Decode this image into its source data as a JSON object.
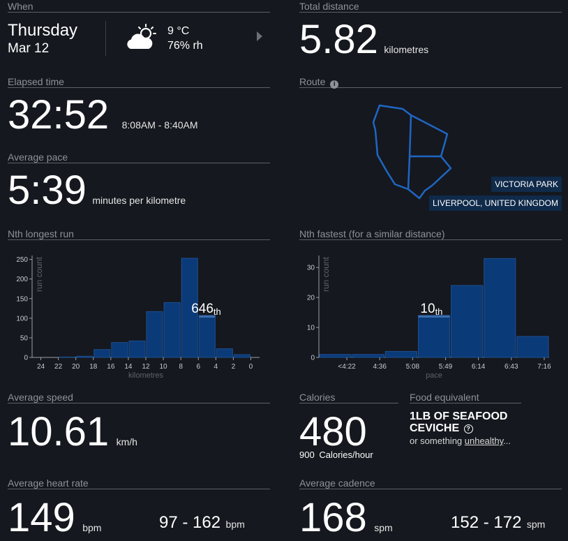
{
  "when": {
    "label": "When",
    "day": "Thursday",
    "date": "Mar 12",
    "temperature": "9 °C",
    "humidity": "76% rh",
    "next_icon": "chevron-right-icon",
    "weather_icon": "partly-cloudy-icon"
  },
  "distance": {
    "label": "Total distance",
    "value": "5.82",
    "unit": "kilometres"
  },
  "elapsed": {
    "label": "Elapsed time",
    "value": "32:52",
    "range": "8:08AM - 8:40AM"
  },
  "route": {
    "label": "Route",
    "info_icon": "info-icon",
    "place": "VICTORIA PARK",
    "city": "LIVERPOOL, UNITED KINGDOM"
  },
  "pace": {
    "label": "Average pace",
    "value": "5:39",
    "unit": "minutes per kilometre"
  },
  "longest": {
    "label": "Nth longest run",
    "rank": "646",
    "suffix": "th"
  },
  "fastest": {
    "label": "Nth fastest (for a similar distance)",
    "rank": "10",
    "suffix": "th"
  },
  "speed": {
    "label": "Average speed",
    "value": "10.61",
    "unit": "km/h"
  },
  "calories": {
    "label": "Calories",
    "value": "480",
    "rate_value": "900",
    "rate_unit": "Calories/hour"
  },
  "food": {
    "label": "Food equivalent",
    "line1": "1LB OF SEAFOOD",
    "line2": "CEVICHE",
    "help_icon": "question-icon",
    "prefix": "or something ",
    "link": "unhealthy",
    "suffix": "..."
  },
  "heart": {
    "label": "Average heart rate",
    "value": "149",
    "unit": "bpm",
    "range": "97 - 162",
    "range_unit": "bpm"
  },
  "cadence": {
    "label": "Average cadence",
    "value": "168",
    "unit": "spm",
    "range": "152 - 172",
    "range_unit": "spm"
  },
  "chart_data": [
    {
      "type": "bar",
      "title": "Nth longest run",
      "ylabel": "run count",
      "xlabel": "kilometres",
      "x_reversed": true,
      "ylim": [
        0,
        260
      ],
      "yticks": [
        0,
        50,
        100,
        150,
        200,
        250
      ],
      "xticks": [
        "24",
        "22",
        "20",
        "18",
        "16",
        "14",
        "12",
        "10",
        "8",
        "6",
        "4",
        "2",
        "0"
      ],
      "bars": [
        {
          "from": 22,
          "to": 20,
          "value": 1
        },
        {
          "from": 20,
          "to": 18,
          "value": 3
        },
        {
          "from": 18,
          "to": 16,
          "value": 20
        },
        {
          "from": 16,
          "to": 14,
          "value": 38
        },
        {
          "from": 14,
          "to": 12,
          "value": 42
        },
        {
          "from": 12,
          "to": 10,
          "value": 117
        },
        {
          "from": 10,
          "to": 8,
          "value": 140
        },
        {
          "from": 8,
          "to": 6,
          "value": 253
        },
        {
          "from": 6,
          "to": 4,
          "value": 107
        },
        {
          "from": 4,
          "to": 2,
          "value": 22
        },
        {
          "from": 2,
          "to": 0,
          "value": 7
        }
      ],
      "highlight_index": 8
    },
    {
      "type": "bar",
      "title": "Nth fastest (for a similar distance)",
      "ylabel": "run count",
      "xlabel": "pace",
      "ylim": [
        0,
        34
      ],
      "yticks": [
        0,
        10,
        20,
        30
      ],
      "xticks": [
        "<4:22",
        "4:36",
        "5:08",
        "5:49",
        "6:14",
        "6:43",
        "7:16"
      ],
      "bars": [
        {
          "value": 1
        },
        {
          "value": 1
        },
        {
          "value": 2
        },
        {
          "value": 14
        },
        {
          "value": 24
        },
        {
          "value": 33
        },
        {
          "value": 7
        }
      ],
      "highlight_index": 3
    }
  ],
  "colors": {
    "bar": "#0b3a78",
    "bar_edge": "#1c4f92",
    "highlight": "#3d6fb0",
    "route": "#1f66c4",
    "badge": "#0f2a4a"
  }
}
